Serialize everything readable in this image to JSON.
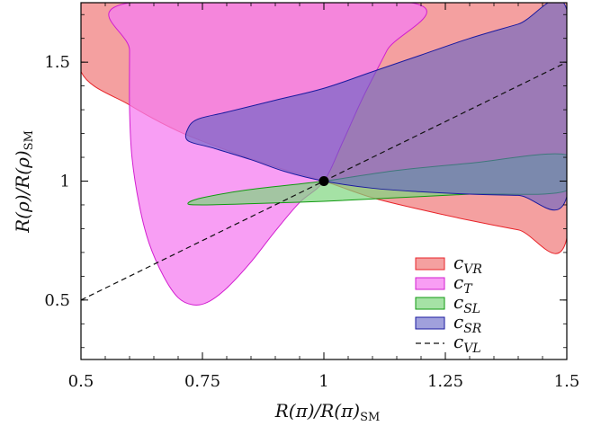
{
  "chart_data": {
    "type": "area",
    "xlabel": "R(π)/R(π)SM",
    "ylabel": "R(ρ)/R(ρ)SM",
    "xlim": [
      0.5,
      1.5
    ],
    "ylim": [
      0.25,
      1.75
    ],
    "xticks": [
      0.5,
      0.75,
      1,
      1.25,
      1.5
    ],
    "xtick_labels": [
      "0.5",
      "0.75",
      "1",
      "1.25",
      "1.5"
    ],
    "yticks": [
      0.5,
      1,
      1.5
    ],
    "ytick_labels": [
      "0.5",
      "1",
      "1.5"
    ],
    "grid": false,
    "legend_position": "lower-right",
    "sm_point": {
      "x": 1.0,
      "y": 1.0
    },
    "series": [
      {
        "name": "c_VR",
        "label_main": "c",
        "label_sub": "VR",
        "kind": "region",
        "fill": "#f4a0a0",
        "stroke": "#e8242a",
        "points": [
          [
            0.5,
            1.75
          ],
          [
            1.5,
            1.75
          ],
          [
            1.5,
            0.76
          ],
          [
            1.4,
            0.795
          ],
          [
            1.3,
            0.835
          ],
          [
            1.2,
            0.88
          ],
          [
            1.1,
            0.93
          ],
          [
            1.0,
            1.0
          ],
          [
            0.9,
            1.06
          ],
          [
            0.8,
            1.13
          ],
          [
            0.7,
            1.21
          ],
          [
            0.6,
            1.32
          ],
          [
            0.5,
            1.46
          ]
        ]
      },
      {
        "name": "c_T",
        "label_main": "c",
        "label_sub": "T",
        "kind": "region",
        "fill": "#f57ef0",
        "fill_opacity": 0.75,
        "stroke": "#d21fd0",
        "points": [
          [
            0.6,
            1.75
          ],
          [
            0.6,
            1.55
          ],
          [
            0.6,
            1.3
          ],
          [
            0.605,
            1.1
          ],
          [
            0.62,
            0.9
          ],
          [
            0.64,
            0.74
          ],
          [
            0.67,
            0.6
          ],
          [
            0.7,
            0.51
          ],
          [
            0.73,
            0.48
          ],
          [
            0.76,
            0.49
          ],
          [
            0.8,
            0.55
          ],
          [
            0.85,
            0.66
          ],
          [
            0.9,
            0.79
          ],
          [
            0.95,
            0.91
          ],
          [
            1.0,
            1.0
          ],
          [
            1.04,
            1.17
          ],
          [
            1.08,
            1.35
          ],
          [
            1.13,
            1.55
          ],
          [
            1.18,
            1.75
          ]
        ]
      },
      {
        "name": "c_SL",
        "label_main": "c",
        "label_sub": "SL",
        "kind": "region",
        "fill": "#7fd67f",
        "fill_opacity": 0.7,
        "stroke": "#119a11",
        "points": [
          [
            1.5,
            1.11
          ],
          [
            1.3,
            1.075
          ],
          [
            1.15,
            1.045
          ],
          [
            1.0,
            1.0
          ],
          [
            0.85,
            0.965
          ],
          [
            0.75,
            0.93
          ],
          [
            0.72,
            0.905
          ],
          [
            0.75,
            0.9
          ],
          [
            0.85,
            0.905
          ],
          [
            1.0,
            0.915
          ],
          [
            1.15,
            0.93
          ],
          [
            1.3,
            0.945
          ],
          [
            1.5,
            0.96
          ]
        ]
      },
      {
        "name": "c_SR",
        "label_main": "c",
        "label_sub": "SR",
        "kind": "region",
        "fill": "#6060c4",
        "fill_opacity": 0.6,
        "stroke": "#1a1a9f",
        "points": [
          [
            1.5,
            1.72
          ],
          [
            1.4,
            1.66
          ],
          [
            1.3,
            1.6
          ],
          [
            1.2,
            1.53
          ],
          [
            1.1,
            1.46
          ],
          [
            1.0,
            1.39
          ],
          [
            0.9,
            1.34
          ],
          [
            0.8,
            1.29
          ],
          [
            0.74,
            1.26
          ],
          [
            0.72,
            1.22
          ],
          [
            0.72,
            1.17
          ],
          [
            0.77,
            1.14
          ],
          [
            0.85,
            1.09
          ],
          [
            0.92,
            1.04
          ],
          [
            1.0,
            1.0
          ],
          [
            1.1,
            0.97
          ],
          [
            1.2,
            0.955
          ],
          [
            1.3,
            0.945
          ],
          [
            1.4,
            0.94
          ],
          [
            1.5,
            0.935
          ]
        ]
      },
      {
        "name": "c_VL",
        "label_main": "c",
        "label_sub": "VL",
        "kind": "line",
        "stroke": "#111111",
        "dash": true,
        "points": [
          [
            0.5,
            0.5
          ],
          [
            1.5,
            1.5
          ]
        ]
      }
    ]
  }
}
